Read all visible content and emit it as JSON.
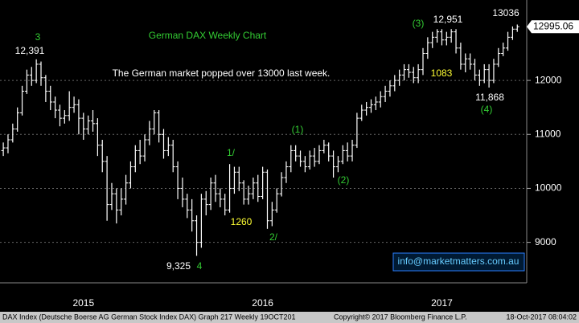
{
  "chart_data": {
    "type": "ohlc",
    "title": "German DAX Weekly Chart",
    "subtitle": "The German market popped over 13000 last week.",
    "color": "#ffffff",
    "grid": true,
    "ylim": [
      8250,
      13490
    ],
    "yticks": [
      9000,
      10000,
      11000,
      12000
    ],
    "xlim": [
      -0.7,
      111
    ],
    "xticks": [
      {
        "value": 17,
        "label": "2015"
      },
      {
        "value": 55,
        "label": "2016"
      },
      {
        "value": 93,
        "label": "2017"
      }
    ],
    "open": [
      10700,
      10750,
      10900,
      11100,
      11400,
      11800,
      12100,
      12000,
      12300,
      12050,
      11800,
      11600,
      11450,
      11300,
      11350,
      11500,
      11550,
      11300,
      11100,
      11250,
      11200,
      10800,
      10500,
      9700,
      9900,
      9600,
      9800,
      10100,
      10400,
      10700,
      10600,
      10900,
      11100,
      11400,
      11000,
      10700,
      10800,
      10400,
      10000,
      9800,
      9600,
      9400,
      9000,
      9800,
      9700,
      10100,
      9900,
      9800,
      9600,
      10000,
      10300,
      10100,
      9800,
      9900,
      10100,
      9850,
      10300,
      9400,
      9600,
      9900,
      10200,
      10400,
      10700,
      10600,
      10500,
      10400,
      10600,
      10500,
      10700,
      10800,
      10600,
      10400,
      10500,
      10700,
      10600,
      10800,
      11300,
      11450,
      11500,
      11550,
      11600,
      11700,
      11800,
      11900,
      12000,
      12100,
      12200,
      12150,
      12050,
      12200,
      12500,
      12700,
      12800,
      12900,
      12750,
      12800,
      12900,
      12600,
      12300,
      12400,
      12300,
      12100,
      12000,
      12200,
      12000,
      12300,
      12500,
      12600,
      12800,
      12950
    ],
    "high": [
      10850,
      11000,
      11200,
      11500,
      11900,
      12200,
      12250,
      12391,
      12350,
      12100,
      11900,
      11700,
      11550,
      11450,
      11800,
      11700,
      11650,
      11400,
      11350,
      11450,
      11300,
      10900,
      10600,
      10100,
      10000,
      10000,
      10250,
      10500,
      10800,
      10900,
      11000,
      11250,
      11450,
      11450,
      11100,
      10950,
      10900,
      10500,
      10200,
      9900,
      9800,
      9500,
      9900,
      9950,
      10200,
      10250,
      10000,
      9900,
      10450,
      10400,
      10400,
      10150,
      10050,
      10200,
      10250,
      10400,
      10350,
      9750,
      10000,
      10300,
      10500,
      10800,
      10800,
      10700,
      10600,
      10700,
      10750,
      10800,
      10900,
      10850,
      10700,
      10600,
      10800,
      10850,
      10900,
      11400,
      11550,
      11600,
      11650,
      11700,
      11800,
      11900,
      12000,
      12100,
      12200,
      12300,
      12300,
      12250,
      12300,
      12600,
      12800,
      12900,
      12950,
      12950,
      12900,
      12951,
      12950,
      12700,
      12500,
      12500,
      12400,
      12200,
      12300,
      12300,
      12400,
      12600,
      12700,
      12900,
      13000,
      13036
    ],
    "low": [
      10600,
      10650,
      10850,
      11050,
      11350,
      11750,
      11900,
      11950,
      11900,
      11600,
      11450,
      11300,
      11150,
      11200,
      11250,
      11400,
      11000,
      10900,
      11000,
      11050,
      10600,
      10300,
      9400,
      9600,
      9350,
      9500,
      9700,
      10000,
      10300,
      10450,
      10500,
      10800,
      11000,
      10850,
      10550,
      10600,
      10300,
      9800,
      9650,
      9450,
      9200,
      8750,
      8900,
      9500,
      9600,
      9750,
      9650,
      9500,
      9550,
      9900,
      9950,
      9700,
      9700,
      9800,
      9750,
      9800,
      9250,
      9300,
      9550,
      9850,
      10100,
      10300,
      10500,
      10400,
      10300,
      10350,
      10400,
      10450,
      10650,
      10500,
      10200,
      10300,
      10450,
      10500,
      10500,
      10750,
      11250,
      11350,
      11400,
      11450,
      11500,
      11600,
      11700,
      11800,
      11900,
      12000,
      12050,
      11950,
      11950,
      12100,
      12400,
      12600,
      12700,
      12650,
      12650,
      12700,
      12500,
      12200,
      12150,
      12200,
      12000,
      11900,
      11950,
      11868,
      11950,
      12250,
      12450,
      12550,
      12750,
      12900
    ],
    "close": [
      10750,
      10900,
      11100,
      11400,
      11800,
      12100,
      12000,
      12300,
      12050,
      11800,
      11600,
      11450,
      11300,
      11350,
      11500,
      11550,
      11300,
      11100,
      11250,
      11200,
      10800,
      10500,
      9700,
      9900,
      9600,
      9800,
      10100,
      10400,
      10700,
      10600,
      10900,
      11100,
      11400,
      11000,
      10700,
      10800,
      10400,
      10000,
      9800,
      9600,
      9400,
      9000,
      9800,
      9700,
      10100,
      9900,
      9800,
      9600,
      10000,
      10300,
      10100,
      9800,
      9900,
      10100,
      9850,
      10300,
      9400,
      9600,
      9900,
      10200,
      10400,
      10700,
      10600,
      10500,
      10400,
      10600,
      10500,
      10700,
      10800,
      10600,
      10400,
      10500,
      10700,
      10600,
      10800,
      11300,
      11450,
      11500,
      11550,
      11600,
      11700,
      11800,
      11900,
      12000,
      12100,
      12200,
      12150,
      12050,
      12200,
      12500,
      12700,
      12800,
      12900,
      12750,
      12800,
      12900,
      12600,
      12300,
      12400,
      12300,
      12100,
      12000,
      12200,
      12000,
      12300,
      12500,
      12600,
      12800,
      12950,
      12995.06
    ],
    "annotations": [
      {
        "text": "3",
        "color": "#33cc33"
      },
      {
        "text": "12,391",
        "color": "#ffffff"
      },
      {
        "text": "9,325",
        "color": "#ffffff"
      },
      {
        "text": "4",
        "color": "#33cc33"
      },
      {
        "text": "1/",
        "color": "#33cc33"
      },
      {
        "text": "1260",
        "color": "#ffff33"
      },
      {
        "text": "2/",
        "color": "#33cc33"
      },
      {
        "text": "(1)",
        "color": "#33cc33"
      },
      {
        "text": "(2)",
        "color": "#33cc33"
      },
      {
        "text": "(3)",
        "color": "#33cc33"
      },
      {
        "text": "12,951",
        "color": "#ffffff"
      },
      {
        "text": "1083",
        "color": "#ffff33"
      },
      {
        "text": "13036",
        "color": "#ffffff"
      },
      {
        "text": "11,868",
        "color": "#ffffff"
      },
      {
        "text": "(4)",
        "color": "#33cc33"
      }
    ],
    "watermark": "info@marketmatters.com.au",
    "source": "DAX Index (Deutsche Boerse AG German Stock Index DAX) Graph 217  Weekly 19OCT201",
    "copyright": "Copyright© 2017 Bloomberg Finance L.P.",
    "timestamp": "18-Oct-2017 08:04:02"
  }
}
